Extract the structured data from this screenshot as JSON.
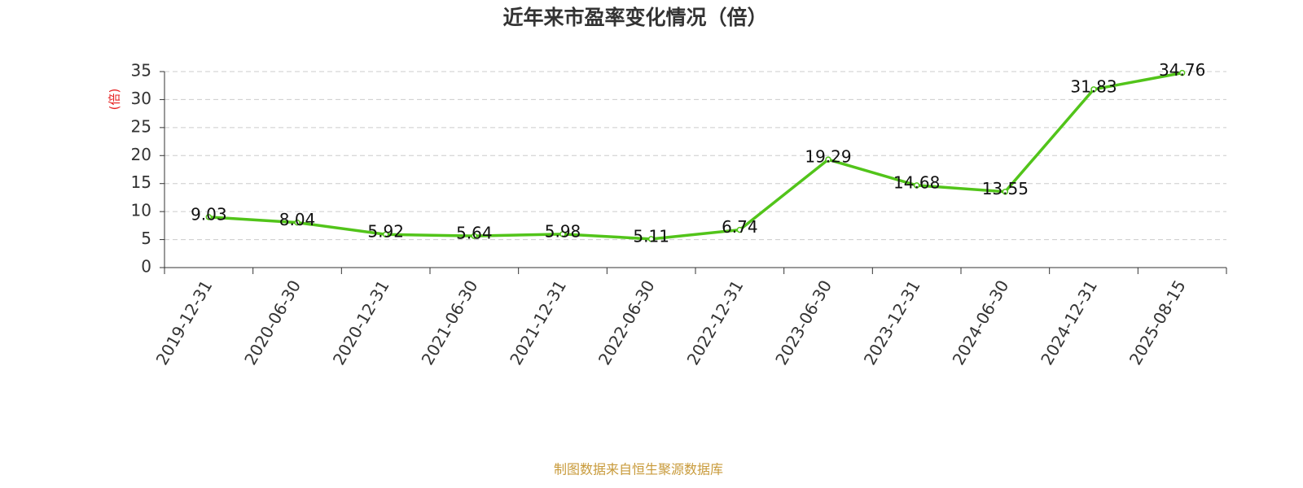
{
  "chart_data": {
    "type": "line",
    "title": "近年来市盈率变化情况（倍）",
    "y_label": "(倍)",
    "source": "制图数据来自恒生聚源数据库",
    "categories": [
      "2019-12-31",
      "2020-06-30",
      "2020-12-31",
      "2021-06-30",
      "2021-12-31",
      "2022-06-30",
      "2022-12-31",
      "2023-06-30",
      "2023-12-31",
      "2024-06-30",
      "2024-12-31",
      "2025-08-15"
    ],
    "values": [
      9.03,
      8.04,
      5.92,
      5.64,
      5.98,
      5.11,
      6.74,
      19.29,
      14.68,
      13.55,
      31.83,
      34.76
    ],
    "color": "#52c41a",
    "ylim": [
      0,
      35
    ],
    "yticks": [
      0,
      5,
      10,
      15,
      20,
      25,
      30,
      35
    ],
    "grid": true
  }
}
